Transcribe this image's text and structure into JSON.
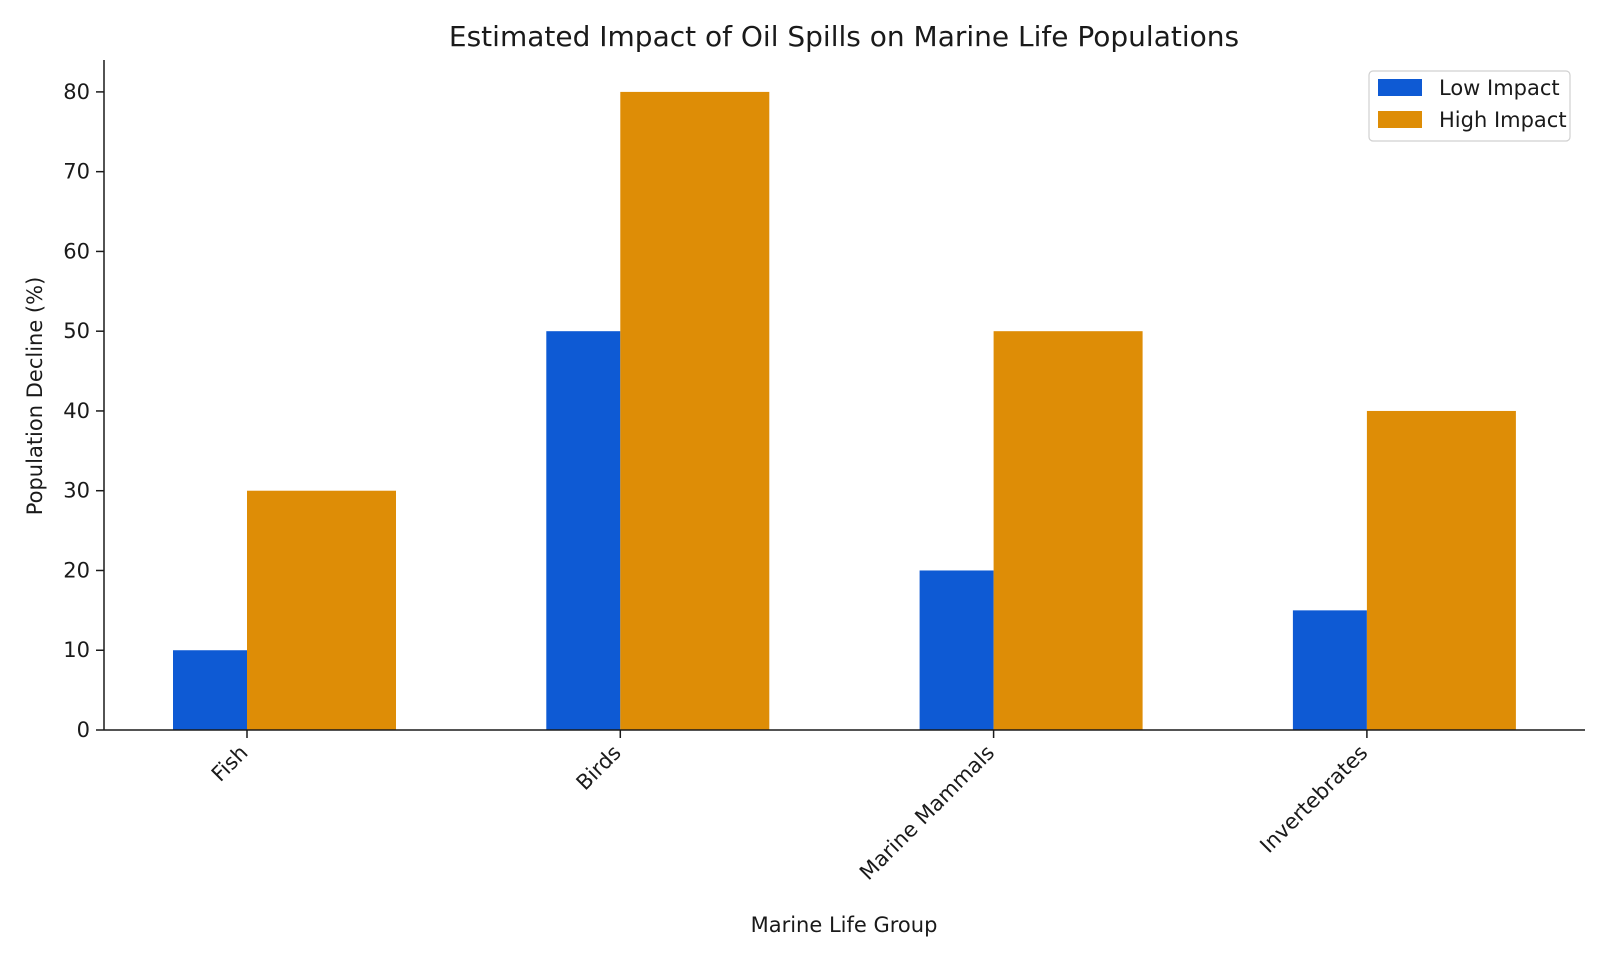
{
  "chart_data": {
    "type": "bar",
    "title": "Estimated Impact of Oil Spills on Marine Life Populations",
    "xlabel": "Marine Life Group",
    "ylabel": "Population Decline (%)",
    "categories": [
      "Fish",
      "Birds",
      "Marine Mammals",
      "Invertebrates"
    ],
    "series": [
      {
        "name": "Low Impact",
        "values": [
          10,
          50,
          20,
          15
        ],
        "color": "#0e5ad4"
      },
      {
        "name": "High Impact",
        "values": [
          30,
          80,
          50,
          40
        ],
        "color": "#de8d06"
      }
    ],
    "ylim": [
      0,
      84
    ],
    "yticks": [
      0,
      10,
      20,
      30,
      40,
      50,
      60,
      70,
      80
    ],
    "grid": false,
    "legend_position": "top-right"
  }
}
